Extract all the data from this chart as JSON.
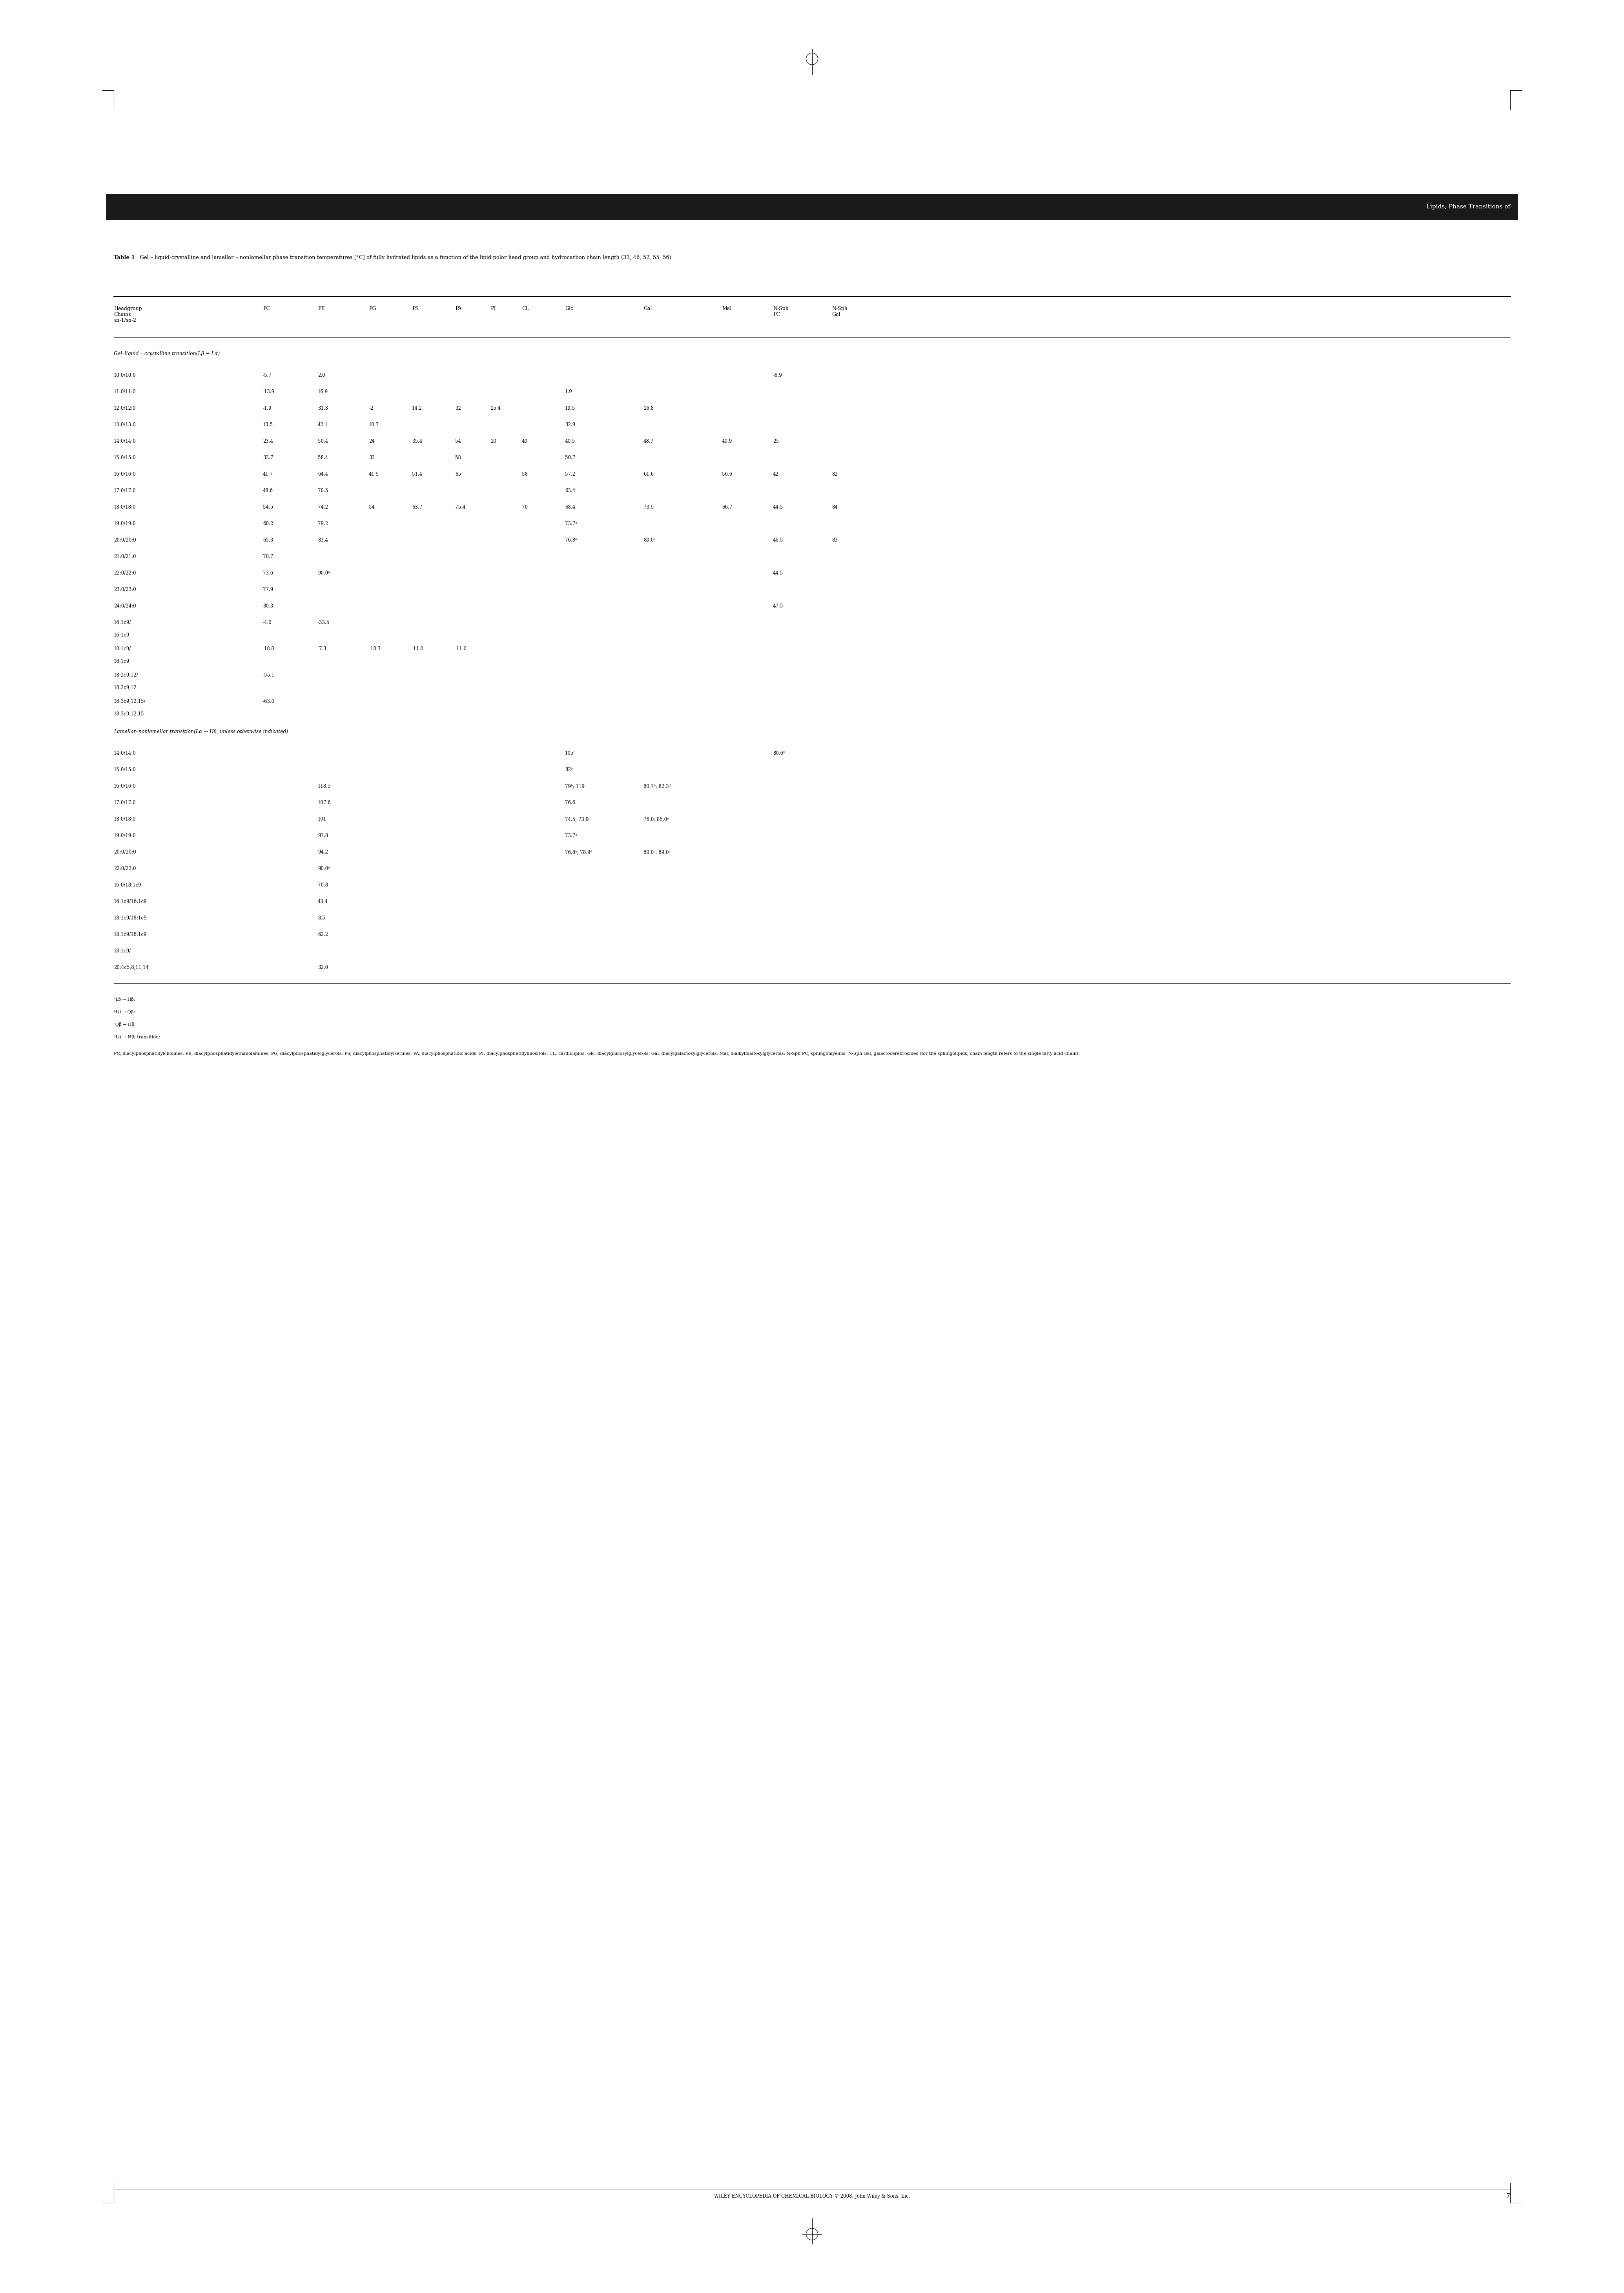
{
  "page_width": 41.19,
  "page_height": 58.23,
  "background_color": "#ffffff",
  "header_bar_color": "#1a1a1a",
  "header_text": "Lipids, Phase Transitions of",
  "header_text_color": "#ffffff",
  "table_caption_bold": "Table 1",
  "table_caption": " Gel – liquid-crystalline and lamellar – nonlamellar phase transition temperatures [°C] of fully hydrated lipids as a\nfunction of the lipid polar head group and hydrocarbon chain length (33, 46, 52, 55, 56)",
  "col_headers": [
    "Headgroup\nChains\nsn-1/sn-2",
    "PC",
    "PE",
    "PG",
    "PS",
    "PA",
    "PI",
    "CL",
    "Glc",
    "Gal",
    "Mal",
    "N-Sph\nPC",
    "N-Sph\nGal"
  ],
  "section1_title": "Gel–liquid – crystalline transition(Lβ → Lα)",
  "section2_title": "Lamellar–nonlamellar transition(Lα → Hβ, unless otherwise indicated)",
  "footnote_a": "ᵃLβ → Hβ;",
  "footnote_b": "ᵇLβ → Qβ;",
  "footnote_c": "ᶜQβ → Hβ;",
  "footnote_d": "ᵈLα → Hβ; transition;",
  "footnotes_main": "PC, diacylphosphatidylcholines; PE, diacylphosphatidylethanolamines; PG, diacylphosphatidylglycerols; PS, diacylphosphatidylserines; PA, diacylphosphatidic acids; PI, diacylphosphatidylinositols; CL, cardiolipins; Glc, diacylglucosylglycerols; Gal, diacylgalactosylglycerols; Mal, dialkylmaltosylglycerols; N-Sph PC, sphingomyelins; N-Sph Gal, galactocerebrosides (for the sphingolipids, chain length refers to the single fatty acid chain).",
  "footer_text": "WILEY ENCYCLOPEDIA OF CHEMICAL BIOLOGY © 2008, John Wiley & Sons, Inc.",
  "footer_page": "7",
  "section1_rows": [
    [
      "10:0/10:0",
      "-5.7",
      "2.0",
      "",
      "",
      "",
      "",
      "",
      "",
      "",
      "",
      "-6.9",
      ""
    ],
    [
      "11:0/11:0",
      "-13.9",
      "16.9",
      "",
      "",
      "",
      "",
      "",
      "1.9",
      "",
      "",
      "",
      ""
    ],
    [
      "12:0/12:0",
      "-1.9",
      "31.3",
      "-2",
      "14.2",
      "32",
      "25.4",
      "",
      "19.5",
      "26.8",
      "",
      "",
      ""
    ],
    [
      "13:0/13:0",
      "13.5",
      "42.1",
      "10.7",
      "",
      "",
      "",
      "",
      "32.9",
      "",
      "",
      "",
      ""
    ],
    [
      "14:0/14:0",
      "23.4",
      "50.4",
      "24",
      "35.4",
      "54",
      "20",
      "40",
      "40.5",
      "48.7",
      "40.9",
      "25",
      ""
    ],
    [
      "15:0/15:0",
      "33.7",
      "58.4",
      "33",
      "",
      "58",
      "",
      "",
      "50.7",
      "",
      "",
      "",
      ""
    ],
    [
      "16:0/16:0",
      "41.7",
      "64.4",
      "41.5",
      "51.4",
      "65",
      "",
      "58",
      "57.2",
      "61.6",
      "56.6",
      "42",
      "82"
    ],
    [
      "17:0/17:0",
      "48.6",
      "70.5",
      "",
      "",
      "",
      "",
      "",
      "63.4",
      "",
      "",
      "",
      ""
    ],
    [
      "18:0/18:0",
      "54.5",
      "74.2",
      "54",
      "63.7",
      "75.4",
      "",
      "70",
      "68.4",
      "73.5",
      "66.7",
      "44.5",
      "84"
    ],
    [
      "19:0/19:0",
      "60.2",
      "79.2",
      "",
      "",
      "",
      "",
      "",
      "73.7ᵃ",
      "",
      "",
      "",
      ""
    ],
    [
      "20:0/20:0",
      "65.3",
      "83.4",
      "",
      "",
      "",
      "",
      "",
      "76.8ᵃ",
      "80.0ᵃ",
      "",
      "46.5",
      "83"
    ],
    [
      "21:0/21:0",
      "70.7",
      "",
      "",
      "",
      "",
      "",
      "",
      "",
      "",
      "",
      "",
      ""
    ],
    [
      "22:0/22:0",
      "73.6",
      "90.0ᵃ",
      "",
      "",
      "",
      "",
      "",
      "",
      "",
      "",
      "44.5",
      ""
    ],
    [
      "23:0/23:0",
      "77.9",
      "",
      "",
      "",
      "",
      "",
      "",
      "",
      "",
      "",
      "",
      ""
    ],
    [
      "24:0/24:0",
      "80.3",
      "",
      "",
      "",
      "",
      "",
      "",
      "",
      "",
      "",
      "47.5",
      ""
    ],
    [
      "16:1c9/\n16:1c9",
      "-4.0",
      "-33.5",
      "",
      "",
      "",
      "",
      "",
      "",
      "",
      "",
      "",
      ""
    ],
    [
      "18:1c9/\n18:1c9",
      "-18.0",
      "-7.3",
      "-18.3",
      "-11.0",
      "-11.0",
      "",
      "",
      "",
      "",
      "",
      "",
      ""
    ],
    [
      "18:2c9,12/\n18:2c9,12",
      "-55.1",
      "",
      "",
      "",
      "",
      "",
      "",
      "",
      "",
      "",
      "",
      ""
    ],
    [
      "18:3c9,12,15/\n18:3c9,12,15",
      "-63.0",
      "",
      "",
      "",
      "",
      "",
      "",
      "",
      "",
      "",
      "",
      ""
    ]
  ],
  "section2_rows": [
    [
      "14:0/14:0",
      "",
      "",
      "",
      "",
      "",
      "",
      "",
      "105ᵇ",
      "",
      "",
      "80.6ᵇ",
      ""
    ],
    [
      "15:0/15:0",
      "",
      "",
      "",
      "",
      "",
      "",
      "",
      "82ᵇ",
      "",
      "",
      "",
      ""
    ],
    [
      "16:0/16:0",
      "",
      "118.5",
      "",
      "",
      "",
      "",
      "",
      "79ᵇ; 119ᶜ",
      "80.7ᵇ; 82.3ᵈ",
      "",
      "",
      ""
    ],
    [
      "17:0/17:0",
      "",
      "107.6",
      "",
      "",
      "",
      "",
      "",
      "76.6",
      "",
      "",
      "",
      ""
    ],
    [
      "18:0/18:0",
      "",
      "101",
      "",
      "",
      "",
      "",
      "",
      "74.5; 73.9ᵈ",
      "76.0; 85.0ᵃ",
      "",
      "",
      ""
    ],
    [
      "19:0/19:0",
      "",
      "97.8",
      "",
      "",
      "",
      "",
      "",
      "73.7ᵃ",
      "",
      "",
      "",
      ""
    ],
    [
      "20:0/20:0",
      "",
      "94.2",
      "",
      "",
      "",
      "",
      "",
      "76.8ᵃ; 78.9ᵈ",
      "80.0ᵃ; 89.0ᵃ",
      "",
      "",
      ""
    ],
    [
      "22:0/22:0",
      "",
      "90.0ᵃ",
      "",
      "",
      "",
      "",
      "",
      "",
      "",
      "",
      "",
      ""
    ],
    [
      "16:0/18:1c9",
      "",
      "70.8",
      "",
      "",
      "",
      "",
      "",
      "",
      "",
      "",
      "",
      ""
    ],
    [
      "16:1c9/16:1c9",
      "",
      "43.4",
      "",
      "",
      "",
      "",
      "",
      "",
      "",
      "",
      "",
      ""
    ],
    [
      "18:1c9/18:1c9",
      "",
      "8.5",
      "",
      "",
      "",
      "",
      "",
      "",
      "",
      "",
      "",
      ""
    ],
    [
      "18:1c9/18:1c9",
      "",
      "62.2",
      "",
      "",
      "",
      "",
      "",
      "",
      "",
      "",
      "",
      ""
    ],
    [
      "18:1c9/",
      "",
      "",
      "",
      "",
      "",
      "",
      "",
      "",
      "",
      "",
      "",
      ""
    ],
    [
      "20:4c5,8,11,14",
      "",
      "32.0",
      "",
      "",
      "",
      "",
      "",
      "",
      "",
      "",
      "",
      ""
    ]
  ]
}
